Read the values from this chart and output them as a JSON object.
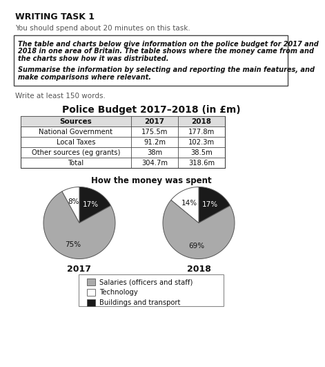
{
  "title_main": "WRITING TASK 1",
  "subtitle": "You should spend about 20 minutes on this task.",
  "box_text_lines": [
    "The table and charts below give information on the police budget for 2017 and",
    "2018 in one area of Britain. The table shows where the money came from and",
    "the charts show how it was distributed.",
    "",
    "Summarise the information by selecting and reporting the main features, and",
    "make comparisons where relevant."
  ],
  "write_note": "Write at least 150 words.",
  "chart_title": "Police Budget 2017–2018 (in £m)",
  "table_headers": [
    "Sources",
    "2017",
    "2018"
  ],
  "table_rows": [
    [
      "National Government",
      "175.5m",
      "177.8m"
    ],
    [
      "Local Taxes",
      "91.2m",
      "102.3m"
    ],
    [
      "Other sources (eg grants)",
      "38m",
      "38.5m"
    ],
    [
      "Total",
      "304.7m",
      "318.6m"
    ]
  ],
  "pie_title": "How the money was spent",
  "pie_2017_values": [
    17,
    75,
    8
  ],
  "pie_2017_labels": [
    "17%",
    "75%",
    "8%"
  ],
  "pie_2017_colors": [
    "#1a1a1a",
    "#aaaaaa",
    "#ffffff"
  ],
  "pie_2018_values": [
    17,
    69,
    14
  ],
  "pie_2018_labels": [
    "17%",
    "69%",
    "14%"
  ],
  "pie_2018_colors": [
    "#1a1a1a",
    "#aaaaaa",
    "#ffffff"
  ],
  "pie_year_labels": [
    "2017",
    "2018"
  ],
  "legend_labels": [
    "Salaries (officers and staff)",
    "Technology",
    "Buildings and transport"
  ],
  "legend_colors": [
    "#aaaaaa",
    "#ffffff",
    "#1a1a1a"
  ],
  "bg_color": "#ffffff"
}
